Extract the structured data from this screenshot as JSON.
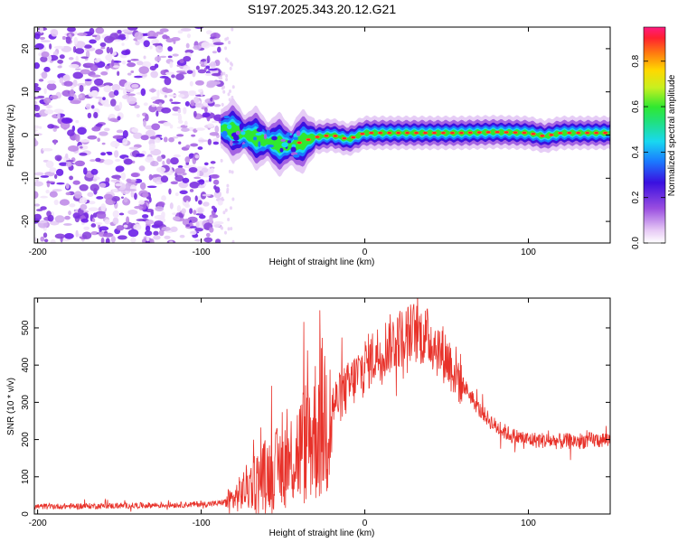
{
  "chart_data": [
    {
      "type": "heatmap",
      "title": "S197.2025.343.20.12.G21",
      "xlabel": "Height of straight line (km)",
      "ylabel": "Frequency (Hz)",
      "xlim": [
        -202,
        150
      ],
      "ylim": [
        -25,
        25
      ],
      "xticks": [
        -200,
        -100,
        0,
        100
      ],
      "yticks": [
        -20,
        -10,
        0,
        10,
        20
      ],
      "colorbar": {
        "label": "Normalized spectral amplitude",
        "range": [
          0,
          0.95
        ],
        "ticks": [
          0.0,
          0.2,
          0.4,
          0.6,
          0.8
        ]
      },
      "noise_region_x": [
        -202,
        -88
      ],
      "ridge_trace": [
        {
          "x": -88,
          "f": 1.5
        },
        {
          "x": -80,
          "f": 1.0
        },
        {
          "x": -72,
          "f": 0.0
        },
        {
          "x": -64,
          "f": -1.0
        },
        {
          "x": -55,
          "f": -2.0
        },
        {
          "x": -45,
          "f": -2.5
        },
        {
          "x": -38,
          "f": -1.5
        },
        {
          "x": -30,
          "f": -0.5
        },
        {
          "x": -20,
          "f": 0.0
        },
        {
          "x": -10,
          "f": -1.0
        },
        {
          "x": 0,
          "f": 0.5
        },
        {
          "x": 20,
          "f": 0.5
        },
        {
          "x": 40,
          "f": 0.5
        },
        {
          "x": 60,
          "f": 0.5
        },
        {
          "x": 80,
          "f": 0.7
        },
        {
          "x": 100,
          "f": 0.5
        },
        {
          "x": 110,
          "f": -0.3
        },
        {
          "x": 120,
          "f": 0.5
        },
        {
          "x": 150,
          "f": 0.5
        }
      ]
    },
    {
      "type": "line",
      "xlabel": "Height of straight line (km)",
      "ylabel": "SNR (10 * v/v)",
      "xlim": [
        -202,
        150
      ],
      "ylim": [
        0,
        580
      ],
      "xticks": [
        -200,
        -100,
        0,
        100
      ],
      "yticks": [
        0,
        100,
        200,
        300,
        400,
        500
      ],
      "series": [
        {
          "name": "SNR",
          "color": "#e8322a",
          "envelope": [
            {
              "x": -202,
              "y": 20
            },
            {
              "x": -150,
              "y": 22
            },
            {
              "x": -110,
              "y": 25
            },
            {
              "x": -90,
              "y": 28
            },
            {
              "x": -80,
              "y": 40
            },
            {
              "x": -70,
              "y": 80
            },
            {
              "x": -60,
              "y": 110
            },
            {
              "x": -50,
              "y": 130
            },
            {
              "x": -40,
              "y": 170
            },
            {
              "x": -30,
              "y": 230
            },
            {
              "x": -20,
              "y": 290
            },
            {
              "x": -10,
              "y": 340
            },
            {
              "x": 0,
              "y": 400
            },
            {
              "x": 10,
              "y": 440
            },
            {
              "x": 20,
              "y": 470
            },
            {
              "x": 30,
              "y": 490
            },
            {
              "x": 40,
              "y": 470
            },
            {
              "x": 50,
              "y": 420
            },
            {
              "x": 60,
              "y": 350
            },
            {
              "x": 70,
              "y": 280
            },
            {
              "x": 80,
              "y": 235
            },
            {
              "x": 90,
              "y": 210
            },
            {
              "x": 100,
              "y": 200
            },
            {
              "x": 120,
              "y": 195
            },
            {
              "x": 150,
              "y": 200
            }
          ]
        }
      ]
    }
  ]
}
